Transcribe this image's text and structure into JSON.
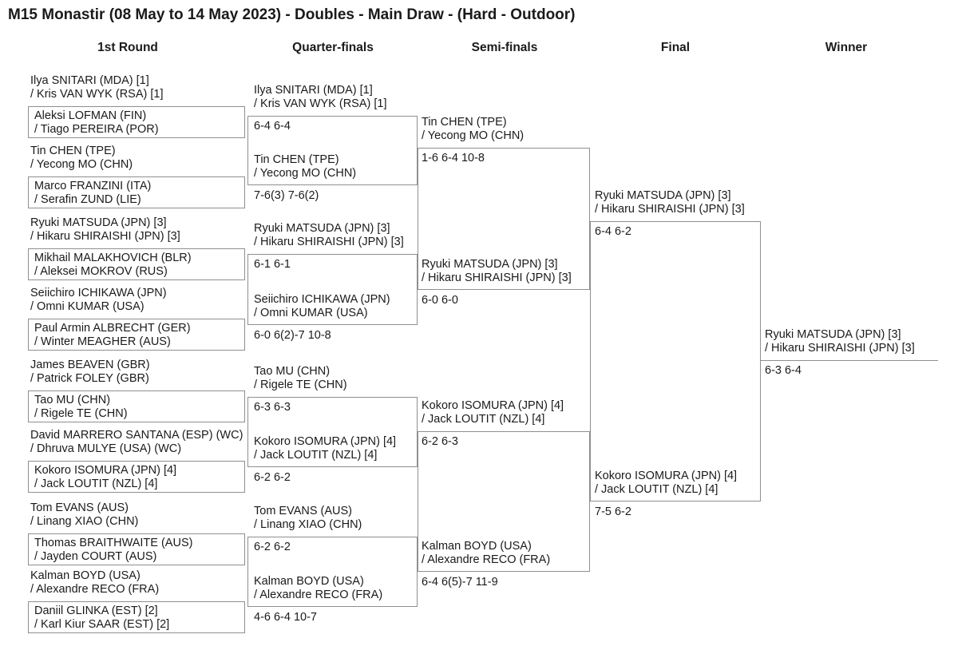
{
  "title": "M15 Monastir (08 May to 14 May 2023) - Doubles - Main Draw - (Hard - Outdoor)",
  "columns": [
    "1st Round",
    "Quarter-finals",
    "Semi-finals",
    "Final",
    "Winner"
  ],
  "colors": {
    "line": "#8f8f8f",
    "text": "#1a1a1a",
    "background": "#ffffff"
  },
  "bracket": {
    "first_round": [
      {
        "line1": "Ilya SNITARI (MDA) [1]",
        "line2": "/ Kris VAN WYK (RSA) [1]"
      },
      {
        "line1": "Aleksi LOFMAN (FIN)",
        "line2": "/ Tiago PEREIRA (POR)"
      },
      {
        "line1": "Tin CHEN (TPE)",
        "line2": "/ Yecong MO (CHN)"
      },
      {
        "line1": "Marco FRANZINI (ITA)",
        "line2": "/ Serafin ZUND (LIE)"
      },
      {
        "line1": "Ryuki MATSUDA (JPN) [3]",
        "line2": "/ Hikaru SHIRAISHI (JPN) [3]"
      },
      {
        "line1": "Mikhail MALAKHOVICH (BLR)",
        "line2": "/ Aleksei MOKROV (RUS)"
      },
      {
        "line1": "Seiichiro ICHIKAWA (JPN)",
        "line2": "/ Omni KUMAR (USA)"
      },
      {
        "line1": "Paul Armin ALBRECHT (GER)",
        "line2": "/ Winter MEAGHER (AUS)"
      },
      {
        "line1": "James BEAVEN (GBR)",
        "line2": "/ Patrick FOLEY (GBR)"
      },
      {
        "line1": "Tao MU (CHN)",
        "line2": "/ Rigele TE (CHN)"
      },
      {
        "line1": "David MARRERO SANTANA (ESP) (WC)",
        "line2": "/ Dhruva MULYE (USA) (WC)"
      },
      {
        "line1": "Kokoro ISOMURA (JPN) [4]",
        "line2": "/ Jack LOUTIT (NZL) [4]"
      },
      {
        "line1": "Tom EVANS (AUS)",
        "line2": "/ Linang XIAO (CHN)"
      },
      {
        "line1": "Thomas BRAITHWAITE (AUS)",
        "line2": "/ Jayden COURT (AUS)"
      },
      {
        "line1": "Kalman BOYD (USA)",
        "line2": "/ Alexandre RECO (FRA)"
      },
      {
        "line1": "Daniil GLINKA (EST) [2]",
        "line2": "/ Karl Kiur SAAR (EST) [2]"
      }
    ],
    "quarter_finals": [
      {
        "line1": "Ilya SNITARI (MDA) [1]",
        "line2": "/ Kris VAN WYK (RSA) [1]",
        "score": "6-4 6-4"
      },
      {
        "line1": "Tin CHEN (TPE)",
        "line2": "/ Yecong MO (CHN)",
        "score": "7-6(3) 7-6(2)"
      },
      {
        "line1": "Ryuki MATSUDA (JPN) [3]",
        "line2": "/ Hikaru SHIRAISHI (JPN) [3]",
        "score": "6-1 6-1"
      },
      {
        "line1": "Seiichiro ICHIKAWA (JPN)",
        "line2": "/ Omni KUMAR (USA)",
        "score": "6-0 6(2)-7 10-8"
      },
      {
        "line1": "Tao MU (CHN)",
        "line2": "/ Rigele TE (CHN)",
        "score": "6-3 6-3"
      },
      {
        "line1": "Kokoro ISOMURA (JPN) [4]",
        "line2": "/ Jack LOUTIT (NZL) [4]",
        "score": "6-2 6-2"
      },
      {
        "line1": "Tom EVANS (AUS)",
        "line2": "/ Linang XIAO (CHN)",
        "score": "6-2 6-2"
      },
      {
        "line1": "Kalman BOYD (USA)",
        "line2": "/ Alexandre RECO (FRA)",
        "score": "4-6 6-4 10-7"
      }
    ],
    "semi_finals": [
      {
        "line1": "Tin CHEN (TPE)",
        "line2": "/ Yecong MO (CHN)",
        "score": "1-6 6-4 10-8"
      },
      {
        "line1": "Ryuki MATSUDA (JPN) [3]",
        "line2": "/ Hikaru SHIRAISHI (JPN) [3]",
        "score": "6-0 6-0"
      },
      {
        "line1": "Kokoro ISOMURA (JPN) [4]",
        "line2": "/ Jack LOUTIT (NZL) [4]",
        "score": "6-2 6-3"
      },
      {
        "line1": "Kalman BOYD (USA)",
        "line2": "/ Alexandre RECO (FRA)",
        "score": "6-4 6(5)-7 11-9"
      }
    ],
    "final": [
      {
        "line1": "Ryuki MATSUDA (JPN) [3]",
        "line2": "/ Hikaru SHIRAISHI (JPN) [3]",
        "score": "6-4 6-2"
      },
      {
        "line1": "Kokoro ISOMURA (JPN) [4]",
        "line2": "/ Jack LOUTIT (NZL) [4]",
        "score": "7-5 6-2"
      }
    ],
    "winner": {
      "line1": "Ryuki MATSUDA (JPN) [3]",
      "line2": "/ Hikaru SHIRAISHI (JPN) [3]",
      "score": "6-3 6-4"
    }
  }
}
